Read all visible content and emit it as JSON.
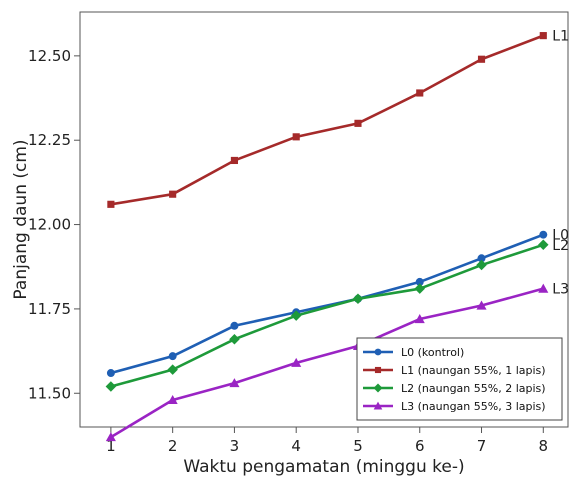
{
  "chart_data": {
    "type": "line",
    "title": "",
    "xlabel": "Waktu pengamatan (minggu ke-)",
    "ylabel": "Panjang daun (cm)",
    "x": [
      1,
      2,
      3,
      4,
      5,
      6,
      7,
      8
    ],
    "xticks": [
      "1",
      "2",
      "3",
      "4",
      "5",
      "6",
      "7",
      "8"
    ],
    "xlim": [
      0.5,
      8.4
    ],
    "ylim": [
      11.4,
      12.63
    ],
    "yticks": [
      "11.50",
      "11.75",
      "12.00",
      "12.25",
      "12.50"
    ],
    "grid": false,
    "legend_position": "bottom-right",
    "series": [
      {
        "name": "L0 (kontrol)",
        "end_label": "L0",
        "color": "#1f5fb4",
        "marker": "circle",
        "values": [
          11.56,
          11.61,
          11.7,
          11.74,
          11.78,
          11.83,
          11.9,
          11.97
        ]
      },
      {
        "name": "L1 (naungan 55%, 1 lapis)",
        "end_label": "L1",
        "color": "#a52a2a",
        "marker": "square",
        "values": [
          12.06,
          12.09,
          12.19,
          12.26,
          12.3,
          12.39,
          12.49,
          12.56
        ]
      },
      {
        "name": "L2 (naungan 55%, 2 lapis)",
        "end_label": "L2",
        "color": "#1e9a3a",
        "marker": "diamond",
        "values": [
          11.52,
          11.57,
          11.66,
          11.73,
          11.78,
          11.81,
          11.88,
          11.94
        ]
      },
      {
        "name": "L3 (naungan 55%, 3 lapis)",
        "end_label": "L3",
        "color": "#9a24c4",
        "marker": "triangle",
        "values": [
          11.37,
          11.48,
          11.53,
          11.59,
          11.64,
          11.72,
          11.76,
          11.81
        ]
      }
    ]
  }
}
